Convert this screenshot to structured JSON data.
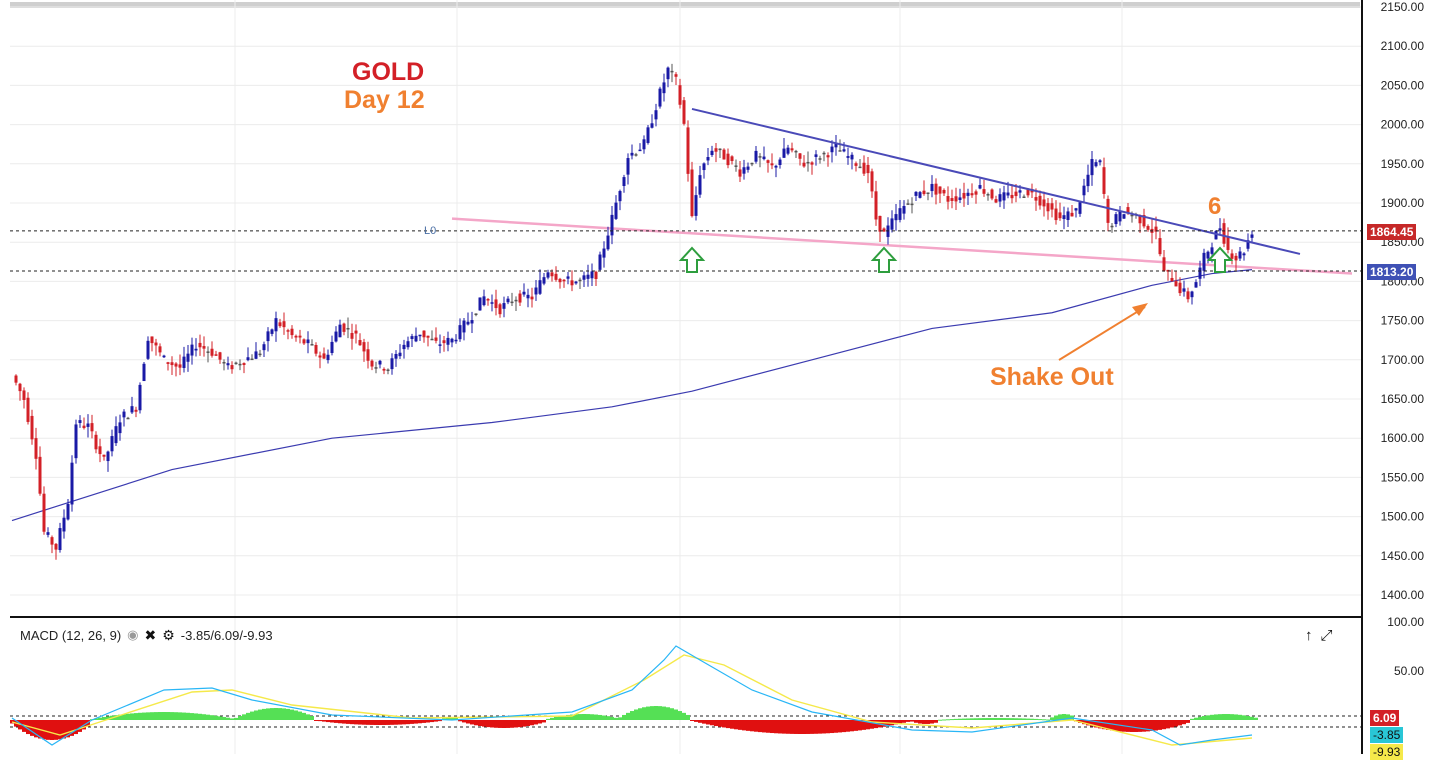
{
  "annotations": {
    "title": "GOLD",
    "subtitle": "Day 12",
    "count_label": "6",
    "shake_out": "Shake Out",
    "l0_label": "L0"
  },
  "price_tags": {
    "upper": "1864.45",
    "lower": "1813.20",
    "upper_color": "#c62828",
    "lower_color": "#3f51b5"
  },
  "macd": {
    "legend": "MACD (12, 26, 9)",
    "values_text": "-3.85/6.09/-9.93",
    "tag_signal": "6.09",
    "tag_macd": "-3.85",
    "tag_hist": "-9.93",
    "axis_labels": [
      "100.00",
      "50.00"
    ]
  },
  "colors": {
    "up_candle": "#1a1aa6",
    "down_candle": "#d32027",
    "neutral_candle": "#555555",
    "trendline": "#4a4ab8",
    "support_line": "#f4a6c8",
    "ma_line": "#3b3bb0",
    "arrow": "#2e9e3e",
    "annotation_orange": "#f08030",
    "title_red": "#d32027",
    "macd_line": "#29b6f6",
    "signal_line": "#f5e94a",
    "hist_pos": "#55e055",
    "hist_neg": "#e01010"
  },
  "chart_data": {
    "type": "candlestick",
    "title": "GOLD",
    "subtitle": "Day 12",
    "ylim": [
      1380,
      2160
    ],
    "y_ticks": [
      "2150.00",
      "2100.00",
      "2050.00",
      "2000.00",
      "1950.00",
      "1900.00",
      "1850.00",
      "1800.00",
      "1750.00",
      "1700.00",
      "1650.00",
      "1600.00",
      "1550.00",
      "1500.00",
      "1450.00",
      "1400.00"
    ],
    "horizontal_levels": [
      1864.45,
      1813.2
    ],
    "close_anchors": [
      [
        0,
        1680
      ],
      [
        3,
        1650
      ],
      [
        6,
        1580
      ],
      [
        8,
        1480
      ],
      [
        11,
        1460
      ],
      [
        14,
        1520
      ],
      [
        16,
        1620
      ],
      [
        19,
        1615
      ],
      [
        23,
        1570
      ],
      [
        27,
        1625
      ],
      [
        31,
        1640
      ],
      [
        34,
        1730
      ],
      [
        38,
        1700
      ],
      [
        42,
        1690
      ],
      [
        46,
        1720
      ],
      [
        50,
        1710
      ],
      [
        54,
        1690
      ],
      [
        58,
        1700
      ],
      [
        62,
        1710
      ],
      [
        66,
        1750
      ],
      [
        70,
        1730
      ],
      [
        74,
        1720
      ],
      [
        78,
        1700
      ],
      [
        82,
        1745
      ],
      [
        86,
        1730
      ],
      [
        90,
        1695
      ],
      [
        94,
        1690
      ],
      [
        98,
        1720
      ],
      [
        102,
        1735
      ],
      [
        106,
        1720
      ],
      [
        110,
        1725
      ],
      [
        114,
        1750
      ],
      [
        118,
        1780
      ],
      [
        122,
        1765
      ],
      [
        126,
        1780
      ],
      [
        130,
        1780
      ],
      [
        134,
        1815
      ],
      [
        138,
        1800
      ],
      [
        142,
        1800
      ],
      [
        146,
        1810
      ],
      [
        150,
        1880
      ],
      [
        154,
        1960
      ],
      [
        158,
        1975
      ],
      [
        162,
        2040
      ],
      [
        164,
        2070
      ],
      [
        166,
        2055
      ],
      [
        168,
        2000
      ],
      [
        170,
        1880
      ],
      [
        172,
        1940
      ],
      [
        175,
        1970
      ],
      [
        178,
        1960
      ],
      [
        182,
        1940
      ],
      [
        186,
        1960
      ],
      [
        190,
        1945
      ],
      [
        194,
        1970
      ],
      [
        198,
        1950
      ],
      [
        202,
        1960
      ],
      [
        206,
        1970
      ],
      [
        210,
        1955
      ],
      [
        214,
        1940
      ],
      [
        216,
        1880
      ],
      [
        218,
        1860
      ],
      [
        222,
        1890
      ],
      [
        226,
        1910
      ],
      [
        230,
        1920
      ],
      [
        234,
        1905
      ],
      [
        238,
        1910
      ],
      [
        242,
        1920
      ],
      [
        246,
        1905
      ],
      [
        250,
        1910
      ],
      [
        254,
        1915
      ],
      [
        258,
        1900
      ],
      [
        262,
        1880
      ],
      [
        266,
        1890
      ],
      [
        270,
        1950
      ],
      [
        272,
        1950
      ],
      [
        274,
        1870
      ],
      [
        278,
        1890
      ],
      [
        282,
        1880
      ],
      [
        286,
        1860
      ],
      [
        288,
        1810
      ],
      [
        290,
        1805
      ],
      [
        292,
        1790
      ],
      [
        294,
        1780
      ],
      [
        296,
        1800
      ],
      [
        298,
        1830
      ],
      [
        302,
        1870
      ],
      [
        304,
        1840
      ],
      [
        306,
        1830
      ],
      [
        308,
        1840
      ],
      [
        310,
        1865
      ]
    ],
    "trendline_resistance": [
      [
        170,
        2020
      ],
      [
        322,
        1835
      ]
    ],
    "support_line": [
      [
        110,
        1880
      ],
      [
        335,
        1810
      ]
    ],
    "moving_average": [
      [
        0,
        1495
      ],
      [
        40,
        1560
      ],
      [
        80,
        1600
      ],
      [
        120,
        1620
      ],
      [
        150,
        1640
      ],
      [
        170,
        1660
      ],
      [
        200,
        1700
      ],
      [
        230,
        1740
      ],
      [
        260,
        1760
      ],
      [
        285,
        1795
      ],
      [
        300,
        1810
      ],
      [
        310,
        1815
      ]
    ],
    "up_arrows": [
      170,
      218,
      302
    ],
    "macd_ylim": [
      -30,
      100
    ],
    "macd_ticks": [
      100,
      50
    ]
  }
}
